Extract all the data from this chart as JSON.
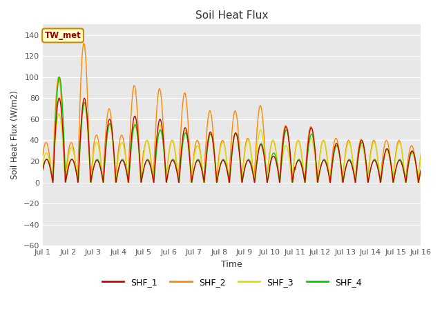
{
  "title": "Soil Heat Flux",
  "ylabel": "Soil Heat Flux (W/m2)",
  "xlabel": "Time",
  "xlim_days": 15,
  "ylim": [
    -60,
    150
  ],
  "yticks": [
    -60,
    -40,
    -20,
    0,
    20,
    40,
    60,
    80,
    100,
    120,
    140
  ],
  "xtick_labels": [
    "Jul 1",
    "Jul 2",
    "Jul 3",
    "Jul 4",
    "Jul 5",
    "Jul 6",
    "Jul 7",
    "Jul 8",
    "Jul 9",
    "Jul 10",
    "Jul 11",
    "Jul 12",
    "Jul 13",
    "Jul 14",
    "Jul 15",
    "Jul 16"
  ],
  "colors": {
    "SHF_1": "#cc0000",
    "SHF_2": "#ff8800",
    "SHF_3": "#dddd00",
    "SHF_4": "#00cc00"
  },
  "background_color": "#e8e8e8",
  "plot_bg": "#d8d8d8",
  "linewidth": 1.0,
  "figsize": [
    6.4,
    4.8
  ],
  "dpi": 100
}
